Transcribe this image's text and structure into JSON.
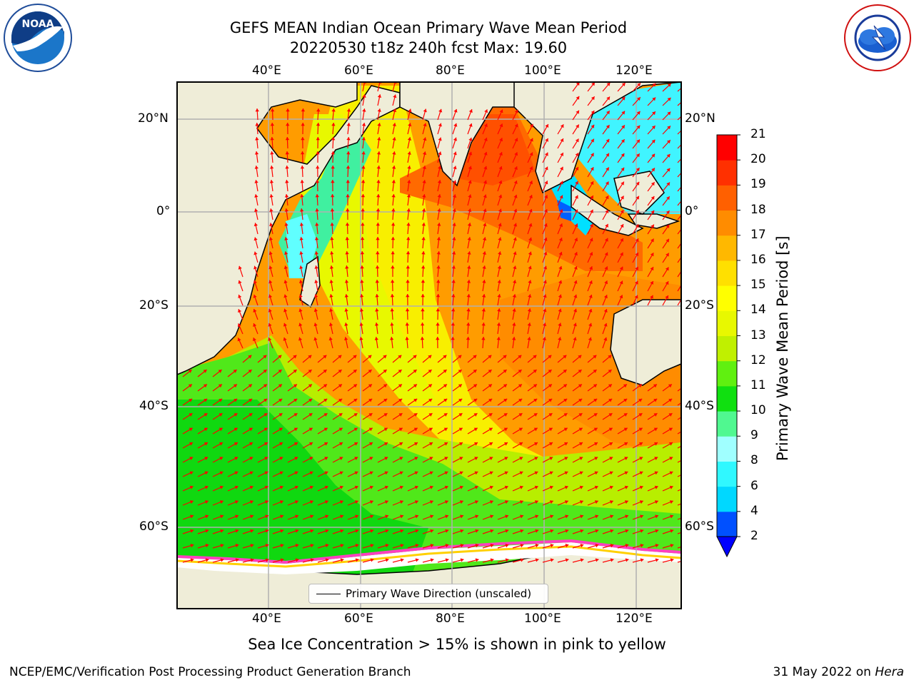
{
  "header": {
    "title_line1": "GEFS MEAN Indian Ocean Primary Wave Mean Period",
    "title_line2": "20220530 t18z 240h fcst   Max: 19.60"
  },
  "logos": {
    "left": {
      "icon": "noaa-logo-icon",
      "text": "NOAA"
    },
    "right": {
      "icon": "nws-logo-icon",
      "text": "NATIONAL WEATHER SERVICE"
    }
  },
  "map": {
    "lon_labels": [
      "40°E",
      "60°E",
      "80°E",
      "100°E",
      "120°E"
    ],
    "lat_labels": [
      "20°N",
      "0°",
      "20°S",
      "40°S",
      "60°S"
    ],
    "legend_label": "Primary Wave Direction (unscaled)",
    "arrow_color": "#ff0000",
    "land_color": "#efedd8"
  },
  "colorbar": {
    "label": "Primary Wave Mean Period [s]",
    "ticks": [
      "2",
      "4",
      "6",
      "8",
      "9",
      "10",
      "11",
      "12",
      "13",
      "14",
      "15",
      "16",
      "17",
      "18",
      "19",
      "20",
      "21"
    ],
    "colors": [
      "#0050ff",
      "#00d8ff",
      "#30f8ff",
      "#a0ffff",
      "#50f890",
      "#10e010",
      "#60f010",
      "#c0f000",
      "#e8f800",
      "#ffff00",
      "#ffe000",
      "#ffb800",
      "#ff8c00",
      "#ff6000",
      "#ff3000",
      "#ff0000"
    ],
    "under_color": "#0000ff"
  },
  "note": "Sea Ice Concentration > 15% is shown in pink to yellow",
  "footer": {
    "left": "NCEP/EMC/Verification Post Processing Product Generation Branch",
    "right_prefix": "31 May 2022 on ",
    "right_host": "Hera"
  }
}
